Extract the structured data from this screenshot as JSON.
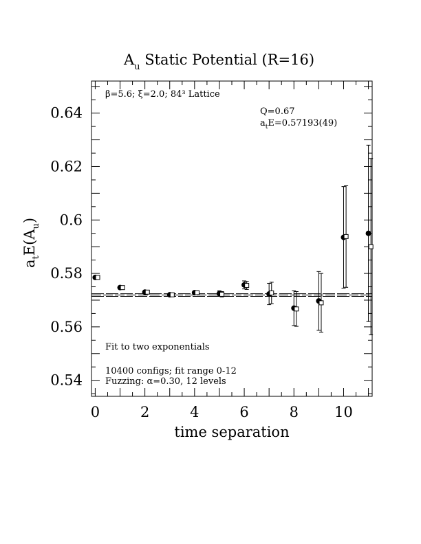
{
  "chart_data": {
    "type": "scatter",
    "title": "A",
    "title_sub": "u",
    "title_rest": " Static Potential (R=16)",
    "xlabel": "time separation",
    "ylabel_main": "a",
    "ylabel_sub_t": "t",
    "ylabel_mid": "E(A",
    "ylabel_sub_u": "u",
    "ylabel_end": ")",
    "xlim": [
      -0.15,
      11.15
    ],
    "ylim": [
      0.534,
      0.652
    ],
    "x_ticks": [
      0,
      2,
      4,
      6,
      8,
      10
    ],
    "x_tick_labels": [
      "0",
      "2",
      "4",
      "6",
      "8",
      "10"
    ],
    "y_ticks": [
      0.54,
      0.56,
      0.58,
      0.6,
      0.62,
      0.64
    ],
    "y_tick_labels": [
      "0.54",
      "0.56",
      "0.58",
      "0.6",
      "0.62",
      "0.64"
    ],
    "annotations": {
      "lattice": "β=5.6; ξ=2.0; 84³ Lattice",
      "q": "Q=0.67",
      "energy_prefix": "a",
      "energy_sub": "t",
      "energy_rest": "E=0.57193(49)",
      "fit": "Fit to two exponentials",
      "configs": "10400 configs; fit range 0-12",
      "fuzzing": "Fuzzing: α=0.30, 12 levels"
    },
    "fit_value": 0.57193,
    "fit_band": [
      0.5714,
      0.5724
    ],
    "series": [
      {
        "marker": "filled-circle",
        "x": [
          0,
          1,
          2,
          3,
          4,
          5,
          6,
          7,
          8,
          9,
          10,
          11
        ],
        "y": [
          0.5785,
          0.5747,
          0.573,
          0.572,
          0.5728,
          0.5725,
          0.5757,
          0.5723,
          0.567,
          0.5697,
          0.5935,
          0.595
        ],
        "err": [
          0.0003,
          0.0003,
          0.0004,
          0.0004,
          0.0005,
          0.001,
          0.0015,
          0.004,
          0.0065,
          0.011,
          0.019,
          0.033
        ]
      },
      {
        "marker": "open-square",
        "x": [
          0.1,
          1.1,
          2.1,
          3.1,
          4.1,
          5.1,
          6.1,
          7.1,
          8.1,
          9.1,
          10.1,
          11.1
        ],
        "y": [
          0.5785,
          0.5747,
          0.573,
          0.572,
          0.5728,
          0.5722,
          0.5755,
          0.5727,
          0.5667,
          0.569,
          0.5938,
          0.59
        ],
        "err": [
          0.0003,
          0.0003,
          0.0004,
          0.0004,
          0.0005,
          0.001,
          0.0015,
          0.004,
          0.0065,
          0.011,
          0.019,
          0.033
        ]
      }
    ]
  }
}
